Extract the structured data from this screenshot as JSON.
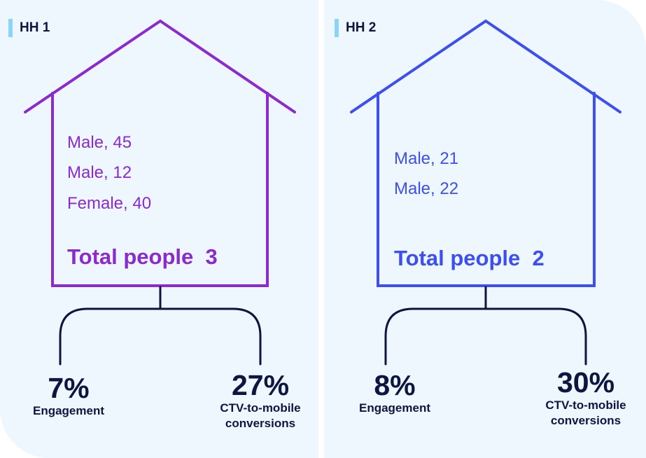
{
  "colors": {
    "hh1": "#8a2ad0",
    "hh2": "#3d4ff0",
    "dark": "#0d1640",
    "tag_bar": "#8ad4f5",
    "panel_bg": "#eef7fd"
  },
  "households": [
    {
      "label": "HH 1",
      "members": [
        "Male, 45",
        "Male, 12",
        "Female, 40"
      ],
      "total_label": "Total people",
      "total_value": "3",
      "engagement_value": "7%",
      "engagement_label": "Engagement",
      "conversion_value": "27%",
      "conversion_label_line1": "CTV-to-mobile",
      "conversion_label_line2": "conversions"
    },
    {
      "label": "HH 2",
      "members": [
        "Male, 21",
        "Male, 22"
      ],
      "total_label": "Total people",
      "total_value": "2",
      "engagement_value": "8%",
      "engagement_label": "Engagement",
      "conversion_value": "30%",
      "conversion_label_line1": "CTV-to-mobile",
      "conversion_label_line2": "conversions"
    }
  ]
}
